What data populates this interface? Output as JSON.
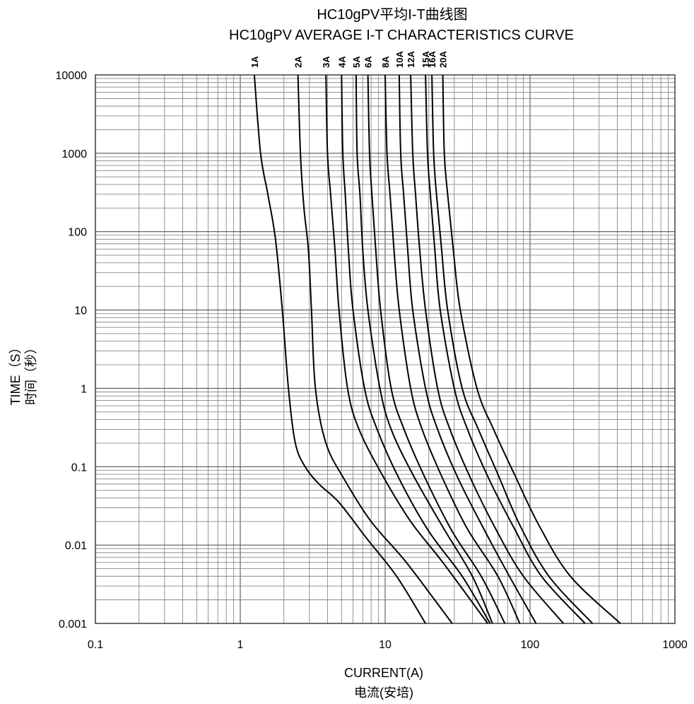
{
  "chart_data": {
    "type": "line",
    "title": "HC10gPV平均I-T曲线图",
    "subtitle": "HC10gPV AVERAGE  I-T CHARACTERISTICS CURVE",
    "xlabel": "CURRENT(A)",
    "xlabel_cn": "电流(安培)",
    "ylabel": "TIME（S）",
    "ylabel_cn": "时间（秒）",
    "x_scale": "log",
    "y_scale": "log",
    "xlim": [
      0.1,
      1000
    ],
    "ylim": [
      0.001,
      10000
    ],
    "x_ticks": [
      "0.1",
      "1",
      "10",
      "100",
      "1000"
    ],
    "y_ticks": [
      "10000",
      "1000",
      "100",
      "10",
      "1",
      "0.1",
      "0.01",
      "0.001"
    ],
    "grid": true,
    "line_color": "#000000",
    "series": [
      {
        "name": "1A",
        "x": [
          1.25,
          1.38,
          1.55,
          1.75,
          1.95,
          2.15,
          2.4,
          2.8,
          3.5,
          4.8,
          7.5,
          12,
          19
        ],
        "y": [
          10000,
          1000,
          300,
          80,
          10,
          1,
          0.2,
          0.1,
          0.06,
          0.035,
          0.012,
          0.004,
          0.001
        ]
      },
      {
        "name": "2A",
        "x": [
          2.5,
          2.6,
          2.75,
          2.95,
          3.1,
          3.3,
          3.9,
          5.2,
          8,
          14,
          29
        ],
        "y": [
          10000,
          1000,
          200,
          60,
          10,
          1,
          0.2,
          0.07,
          0.02,
          0.006,
          0.001
        ]
      },
      {
        "name": "3A",
        "x": [
          3.9,
          4.0,
          4.2,
          4.5,
          4.8,
          5.5,
          6.6,
          9.5,
          15,
          25,
          51
        ],
        "y": [
          10000,
          1000,
          300,
          60,
          10,
          1,
          0.3,
          0.08,
          0.02,
          0.006,
          0.001
        ]
      },
      {
        "name": "4A",
        "x": [
          5.0,
          5.1,
          5.3,
          5.6,
          6.0,
          7.2,
          8.8,
          12.5,
          20,
          34,
          53
        ],
        "y": [
          10000,
          1000,
          300,
          50,
          10,
          1,
          0.3,
          0.07,
          0.015,
          0.004,
          0.001
        ]
      },
      {
        "name": "5A",
        "x": [
          6.3,
          6.4,
          6.7,
          7.0,
          7.6,
          9.2,
          11,
          15.5,
          25,
          40,
          55
        ],
        "y": [
          10000,
          1000,
          300,
          60,
          10,
          1,
          0.3,
          0.08,
          0.017,
          0.004,
          0.001
        ]
      },
      {
        "name": "6A",
        "x": [
          7.6,
          7.8,
          8.1,
          8.6,
          9.3,
          11,
          13.5,
          19,
          29,
          46,
          67
        ],
        "y": [
          10000,
          1000,
          300,
          60,
          10,
          1,
          0.3,
          0.07,
          0.015,
          0.004,
          0.001
        ]
      },
      {
        "name": "8A",
        "x": [
          10,
          10.3,
          10.8,
          11.5,
          12.5,
          15,
          18,
          25,
          37,
          60,
          85
        ],
        "y": [
          10000,
          1000,
          300,
          60,
          10,
          1,
          0.3,
          0.07,
          0.016,
          0.004,
          0.001
        ]
      },
      {
        "name": "10A",
        "x": [
          12.5,
          12.8,
          13.4,
          14.3,
          15.5,
          19,
          23,
          32,
          48,
          72,
          110
        ],
        "y": [
          10000,
          1000,
          300,
          60,
          10,
          1,
          0.3,
          0.07,
          0.016,
          0.004,
          0.001
        ]
      },
      {
        "name": "12A",
        "x": [
          15,
          15.5,
          16.2,
          17.3,
          19,
          23,
          28,
          39,
          58,
          90,
          170
        ],
        "y": [
          10000,
          1000,
          300,
          60,
          10,
          1,
          0.3,
          0.07,
          0.016,
          0.004,
          0.001
        ]
      },
      {
        "name": "15A",
        "x": [
          19,
          19.6,
          20.5,
          22,
          24,
          30,
          37,
          52,
          77,
          120,
          240
        ],
        "y": [
          10000,
          1000,
          300,
          60,
          10,
          1,
          0.3,
          0.07,
          0.017,
          0.004,
          0.001
        ]
      },
      {
        "name": "16A",
        "x": [
          21,
          21.6,
          22.6,
          24.5,
          27,
          34,
          44,
          60,
          85,
          135,
          270
        ],
        "y": [
          10000,
          1000,
          300,
          60,
          10,
          1,
          0.3,
          0.08,
          0.018,
          0.004,
          0.001
        ]
      },
      {
        "name": "20A",
        "x": [
          25,
          25.6,
          27,
          29.5,
          33,
          43,
          56,
          78,
          115,
          190,
          420
        ],
        "y": [
          10000,
          1000,
          300,
          60,
          10,
          1,
          0.3,
          0.08,
          0.018,
          0.004,
          0.001
        ]
      }
    ]
  }
}
